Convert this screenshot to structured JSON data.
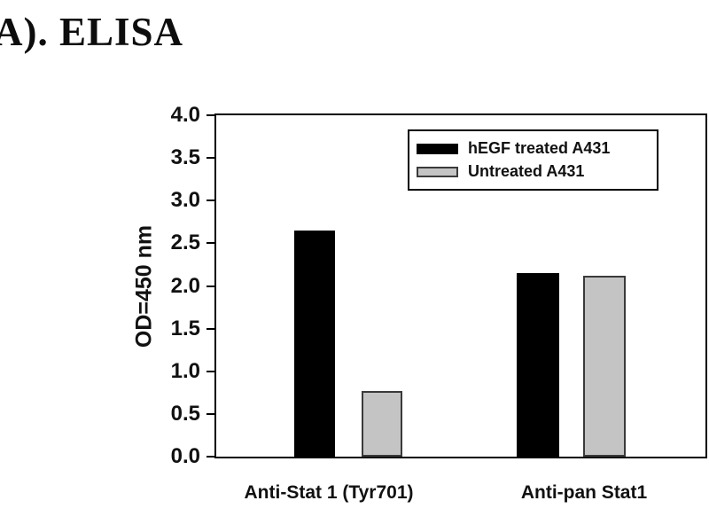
{
  "title": "A). ELISA",
  "chart_data": {
    "type": "bar",
    "title": "A). ELISA",
    "categories": [
      "Anti-Stat 1 (Tyr701)",
      "Anti-pan Stat1"
    ],
    "series": [
      {
        "name": "hEGF treated A431",
        "color": "#000000",
        "edge": "#000000",
        "values": [
          2.65,
          2.15
        ]
      },
      {
        "name": "Untreated A431",
        "color": "#c4c4c4",
        "edge": "#3a3a3a",
        "values": [
          0.77,
          2.12
        ]
      }
    ],
    "xlabel": "",
    "ylabel": "OD=450 nm",
    "ylim": [
      0.0,
      4.0
    ],
    "ytick_step": 0.5,
    "yticks": [
      "0.0",
      "0.5",
      "1.0",
      "1.5",
      "2.0",
      "2.5",
      "3.0",
      "3.5",
      "4.0"
    ],
    "grid": false,
    "legend_position": "top-right",
    "frame": true
  },
  "colors": {
    "background": "#ffffff",
    "frame": "#000000",
    "bar_black": "#000000",
    "bar_gray": "#c4c4c4",
    "text": "#111111"
  }
}
